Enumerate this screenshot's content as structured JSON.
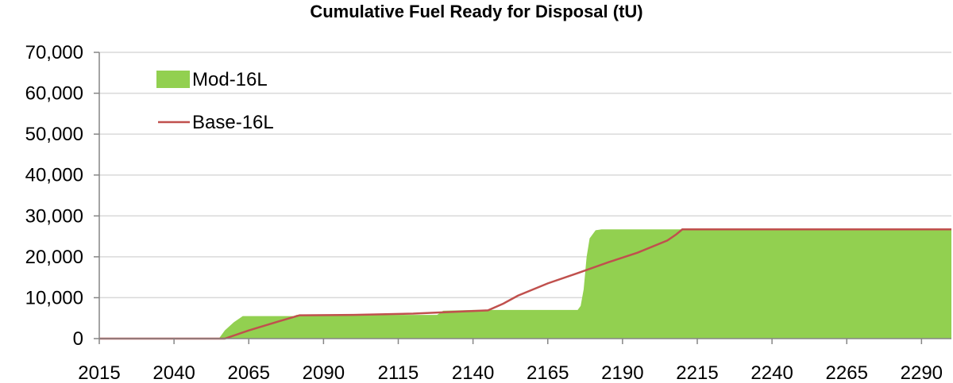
{
  "chart_data": {
    "type": "area",
    "title": "Cumulative Fuel Ready for Disposal (tU)",
    "xlabel": "",
    "ylabel": "",
    "xlim": [
      2015,
      2300
    ],
    "ylim": [
      0,
      70000
    ],
    "x_ticks": [
      2015,
      2040,
      2065,
      2090,
      2115,
      2140,
      2165,
      2190,
      2215,
      2240,
      2265,
      2290
    ],
    "x_tick_labels": [
      "2015",
      "2040",
      "2065",
      "2090",
      "2115",
      "2140",
      "2165",
      "2190",
      "2215",
      "2240",
      "2265",
      "2290"
    ],
    "y_ticks": [
      0,
      10000,
      20000,
      30000,
      40000,
      50000,
      60000,
      70000
    ],
    "y_tick_labels": [
      "0",
      "10,000",
      "20,000",
      "30,000",
      "40,000",
      "50,000",
      "60,000",
      "70,000"
    ],
    "grid": "horizontal",
    "legend_position": "top-left",
    "series": [
      {
        "name": "Mod-16L",
        "kind": "area",
        "color": "#92d050",
        "x": [
          2015,
          2055,
          2057,
          2060,
          2063,
          2080,
          2081,
          2128,
          2130,
          2140,
          2175,
          2176,
          2177,
          2178,
          2179,
          2181,
          2183,
          2185,
          2300
        ],
        "values": [
          0,
          0,
          2000,
          4000,
          5500,
          5500,
          5800,
          5800,
          6800,
          7000,
          7000,
          8000,
          12000,
          20000,
          24500,
          26500,
          26700,
          26700,
          26700
        ]
      },
      {
        "name": "Base-16L",
        "kind": "line",
        "color": "#c0504d",
        "x": [
          2015,
          2057,
          2065,
          2075,
          2082,
          2100,
          2120,
          2145,
          2150,
          2155,
          2165,
          2175,
          2185,
          2195,
          2205,
          2208,
          2210,
          2300
        ],
        "values": [
          0,
          0,
          2000,
          4200,
          5700,
          5800,
          6100,
          6900,
          8500,
          10500,
          13500,
          16000,
          18600,
          21000,
          24000,
          25500,
          26700,
          26700
        ]
      }
    ]
  }
}
